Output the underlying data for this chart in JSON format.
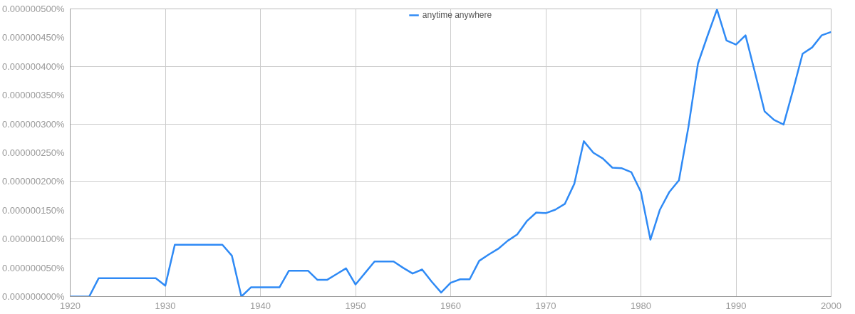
{
  "chart_data": {
    "type": "line",
    "x": [
      1920,
      1921,
      1922,
      1923,
      1924,
      1925,
      1926,
      1927,
      1928,
      1929,
      1930,
      1931,
      1932,
      1933,
      1934,
      1935,
      1936,
      1937,
      1938,
      1939,
      1940,
      1941,
      1942,
      1943,
      1944,
      1945,
      1946,
      1947,
      1948,
      1949,
      1950,
      1951,
      1952,
      1953,
      1954,
      1955,
      1956,
      1957,
      1958,
      1959,
      1960,
      1961,
      1962,
      1963,
      1964,
      1965,
      1966,
      1967,
      1968,
      1969,
      1970,
      1971,
      1972,
      1973,
      1974,
      1975,
      1976,
      1977,
      1978,
      1979,
      1980,
      1981,
      1982,
      1983,
      1984,
      1985,
      1986,
      1987,
      1988,
      1989,
      1990,
      1991,
      1992,
      1993,
      1994,
      1995,
      1996,
      1997,
      1998,
      1999,
      2000
    ],
    "series": [
      {
        "name": "anytime anywhere",
        "color": "#2f8af5",
        "values": [
          0,
          0,
          0,
          3.2e-08,
          3.2e-08,
          3.2e-08,
          3.2e-08,
          3.2e-08,
          3.2e-08,
          3.2e-08,
          1.9e-08,
          9e-08,
          9e-08,
          9e-08,
          9e-08,
          9e-08,
          9e-08,
          7.1e-08,
          0,
          1.6e-08,
          1.6e-08,
          1.6e-08,
          1.6e-08,
          4.5e-08,
          4.5e-08,
          4.5e-08,
          2.9e-08,
          2.9e-08,
          3.9e-08,
          4.9e-08,
          2.1e-08,
          4.1e-08,
          6.1e-08,
          6.1e-08,
          6.1e-08,
          5e-08,
          4e-08,
          4.7e-08,
          2.6e-08,
          7e-09,
          2.4e-08,
          3e-08,
          3e-08,
          6.2e-08,
          7.3e-08,
          8.3e-08,
          9.7e-08,
          1.08e-07,
          1.31e-07,
          1.46e-07,
          1.45e-07,
          1.51e-07,
          1.61e-07,
          1.96e-07,
          2.7e-07,
          2.5e-07,
          2.4e-07,
          2.24e-07,
          2.23e-07,
          2.16e-07,
          1.82e-07,
          9.9e-08,
          1.51e-07,
          1.82e-07,
          2.02e-07,
          2.95e-07,
          4.05e-07,
          4.53e-07,
          4.99e-07,
          4.45e-07,
          4.38e-07,
          4.54e-07,
          3.89e-07,
          3.22e-07,
          3.07e-07,
          2.99e-07,
          3.59e-07,
          4.22e-07,
          4.33e-07,
          4.54e-07,
          4.6e-07
        ]
      }
    ],
    "xlim": [
      1920,
      2000
    ],
    "xticks": [
      1920,
      1930,
      1940,
      1950,
      1960,
      1970,
      1980,
      1990,
      2000
    ],
    "ylim": [
      0,
      5e-07
    ],
    "yticks": [
      {
        "value": 0,
        "label": "0.000000000%"
      },
      {
        "value": 5e-08,
        "label": "0.000000050%"
      },
      {
        "value": 1e-07,
        "label": "0.000000100%"
      },
      {
        "value": 1.5e-07,
        "label": "0.000000150%"
      },
      {
        "value": 2e-07,
        "label": "0.000000200%"
      },
      {
        "value": 2.5e-07,
        "label": "0.000000250%"
      },
      {
        "value": 3e-07,
        "label": "0.000000300%"
      },
      {
        "value": 3.5e-07,
        "label": "0.000000350%"
      },
      {
        "value": 4e-07,
        "label": "0.000000400%"
      },
      {
        "value": 4.5e-07,
        "label": "0.000000450%"
      },
      {
        "value": 5e-07,
        "label": "0.000000500%"
      }
    ],
    "grid": true,
    "legend": "top",
    "marker": "none",
    "line_style": "solid"
  }
}
